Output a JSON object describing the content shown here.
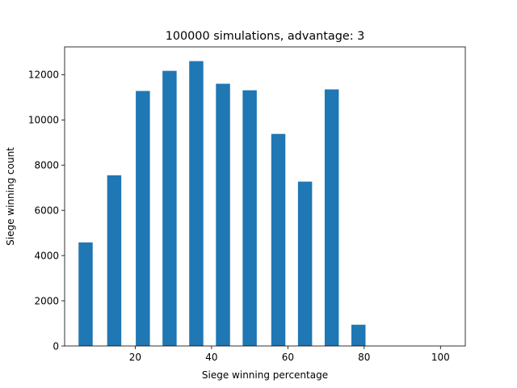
{
  "chart_data": {
    "type": "bar",
    "title": "100000 simulations, advantage: 3",
    "xlabel": "Siege winning percentage",
    "ylabel": "Siege winning count",
    "x": [
      7,
      14.5,
      22,
      29,
      36,
      43,
      50,
      57.5,
      64.5,
      71.5,
      78.5
    ],
    "values": [
      4580,
      7550,
      11280,
      12170,
      12600,
      11600,
      11310,
      9380,
      7270,
      11350,
      940
    ],
    "bar_width": 3.7,
    "xlim": [
      1.5,
      106.5
    ],
    "ylim": [
      0,
      13230
    ],
    "xticks": [
      20,
      40,
      60,
      80,
      100
    ],
    "yticks": [
      0,
      2000,
      4000,
      6000,
      8000,
      10000,
      12000
    ],
    "grid": false,
    "color": "#1f77b4"
  }
}
